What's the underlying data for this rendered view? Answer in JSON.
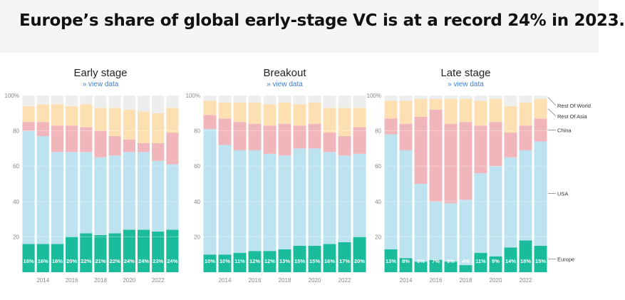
{
  "headline": "Europe’s share of global early-stage VC is at a record 24% in 2023.",
  "link_label": "» view data",
  "colors": {
    "europe": "#1abc9c",
    "usa": "#bde3f0",
    "china": "#f0b6bb",
    "rest_of_asia": "#fde0b2",
    "rest_of_world": "#eeeeee",
    "axis_text": "#888888",
    "title_text": "#222222",
    "link": "#3d7ed4"
  },
  "chart_data": [
    {
      "type": "bar",
      "title": "Early stage",
      "stacked": true,
      "categories": [
        "2013",
        "2014",
        "2015",
        "2016",
        "2017",
        "2018",
        "2019",
        "2020",
        "2021",
        "2022",
        "2023"
      ],
      "x_tick_labels": [
        "2014",
        "2016",
        "2018",
        "2020",
        "2022"
      ],
      "y_tick_labels": [
        "100%",
        "80",
        "60",
        "40",
        "20"
      ],
      "ylim": [
        0,
        100
      ],
      "series": [
        {
          "name": "Europe",
          "values": [
            16,
            16,
            16,
            20,
            22,
            21,
            22,
            24,
            24,
            23,
            24
          ],
          "labels": [
            "16%",
            "16%",
            "16%",
            "20%",
            "22%",
            "21%",
            "22%",
            "24%",
            "24%",
            "23%",
            "24%"
          ]
        },
        {
          "name": "USA",
          "values": [
            64,
            61,
            52,
            48,
            46,
            44,
            44,
            44,
            44,
            40,
            37
          ]
        },
        {
          "name": "China",
          "values": [
            5,
            8,
            15,
            15,
            14,
            15,
            11,
            7,
            5,
            10,
            18
          ]
        },
        {
          "name": "Rest Of Asia",
          "values": [
            9,
            10,
            12,
            11,
            13,
            13,
            16,
            17,
            18,
            17,
            14
          ]
        },
        {
          "name": "Rest Of World",
          "values": [
            6,
            5,
            5,
            6,
            5,
            7,
            7,
            8,
            9,
            10,
            7
          ]
        }
      ]
    },
    {
      "type": "bar",
      "title": "Breakout",
      "stacked": true,
      "categories": [
        "2013",
        "2014",
        "2015",
        "2016",
        "2017",
        "2018",
        "2019",
        "2020",
        "2021",
        "2022",
        "2023"
      ],
      "x_tick_labels": [
        "2014",
        "2016",
        "2018",
        "2020",
        "2022"
      ],
      "y_tick_labels": [
        "100%",
        "80",
        "60",
        "40",
        "20"
      ],
      "ylim": [
        0,
        100
      ],
      "series": [
        {
          "name": "Europe",
          "values": [
            10,
            10,
            11,
            12,
            12,
            13,
            15,
            15,
            16,
            17,
            20
          ],
          "labels": [
            "10%",
            "10%",
            "11%",
            "12%",
            "12%",
            "13%",
            "15%",
            "15%",
            "16%",
            "17%",
            "20%"
          ]
        },
        {
          "name": "USA",
          "values": [
            71,
            62,
            58,
            57,
            55,
            53,
            55,
            55,
            52,
            49,
            47
          ]
        },
        {
          "name": "China",
          "values": [
            8,
            15,
            16,
            15,
            16,
            18,
            13,
            14,
            11,
            11,
            15
          ]
        },
        {
          "name": "Rest Of Asia",
          "values": [
            8,
            9,
            11,
            12,
            12,
            12,
            12,
            12,
            14,
            16,
            11
          ]
        },
        {
          "name": "Rest Of World",
          "values": [
            3,
            4,
            4,
            4,
            5,
            4,
            5,
            4,
            7,
            7,
            7
          ]
        }
      ]
    },
    {
      "type": "bar",
      "title": "Late stage",
      "stacked": true,
      "categories": [
        "2013",
        "2014",
        "2015",
        "2016",
        "2017",
        "2018",
        "2019",
        "2020",
        "2021",
        "2022",
        "2023"
      ],
      "x_tick_labels": [
        "2014",
        "2016",
        "2018",
        "2020",
        "2022"
      ],
      "y_tick_labels": [
        "100%",
        "80",
        "60",
        "40",
        "20"
      ],
      "ylim": [
        0,
        100
      ],
      "series": [
        {
          "name": "Europe",
          "values": [
            13,
            8,
            6,
            7,
            6,
            4,
            11,
            9,
            14,
            18,
            15
          ],
          "labels": [
            "13%",
            "8%",
            "6%",
            "7%",
            "6%",
            "4%",
            "11%",
            "9%",
            "14%",
            "18%",
            "15%"
          ]
        },
        {
          "name": "USA",
          "values": [
            65,
            61,
            44,
            33,
            33,
            37,
            45,
            51,
            51,
            51,
            59
          ]
        },
        {
          "name": "China",
          "values": [
            9,
            15,
            38,
            52,
            45,
            44,
            27,
            25,
            14,
            14,
            13
          ]
        },
        {
          "name": "Rest Of Asia",
          "values": [
            10,
            13,
            10,
            6,
            14,
            13,
            14,
            13,
            15,
            13,
            11
          ]
        },
        {
          "name": "Rest Of World",
          "values": [
            3,
            3,
            2,
            2,
            2,
            2,
            3,
            2,
            6,
            4,
            2
          ]
        }
      ]
    }
  ],
  "legend": [
    "Rest Of World",
    "Rest Of Asia",
    "China",
    "USA",
    "Europe"
  ]
}
